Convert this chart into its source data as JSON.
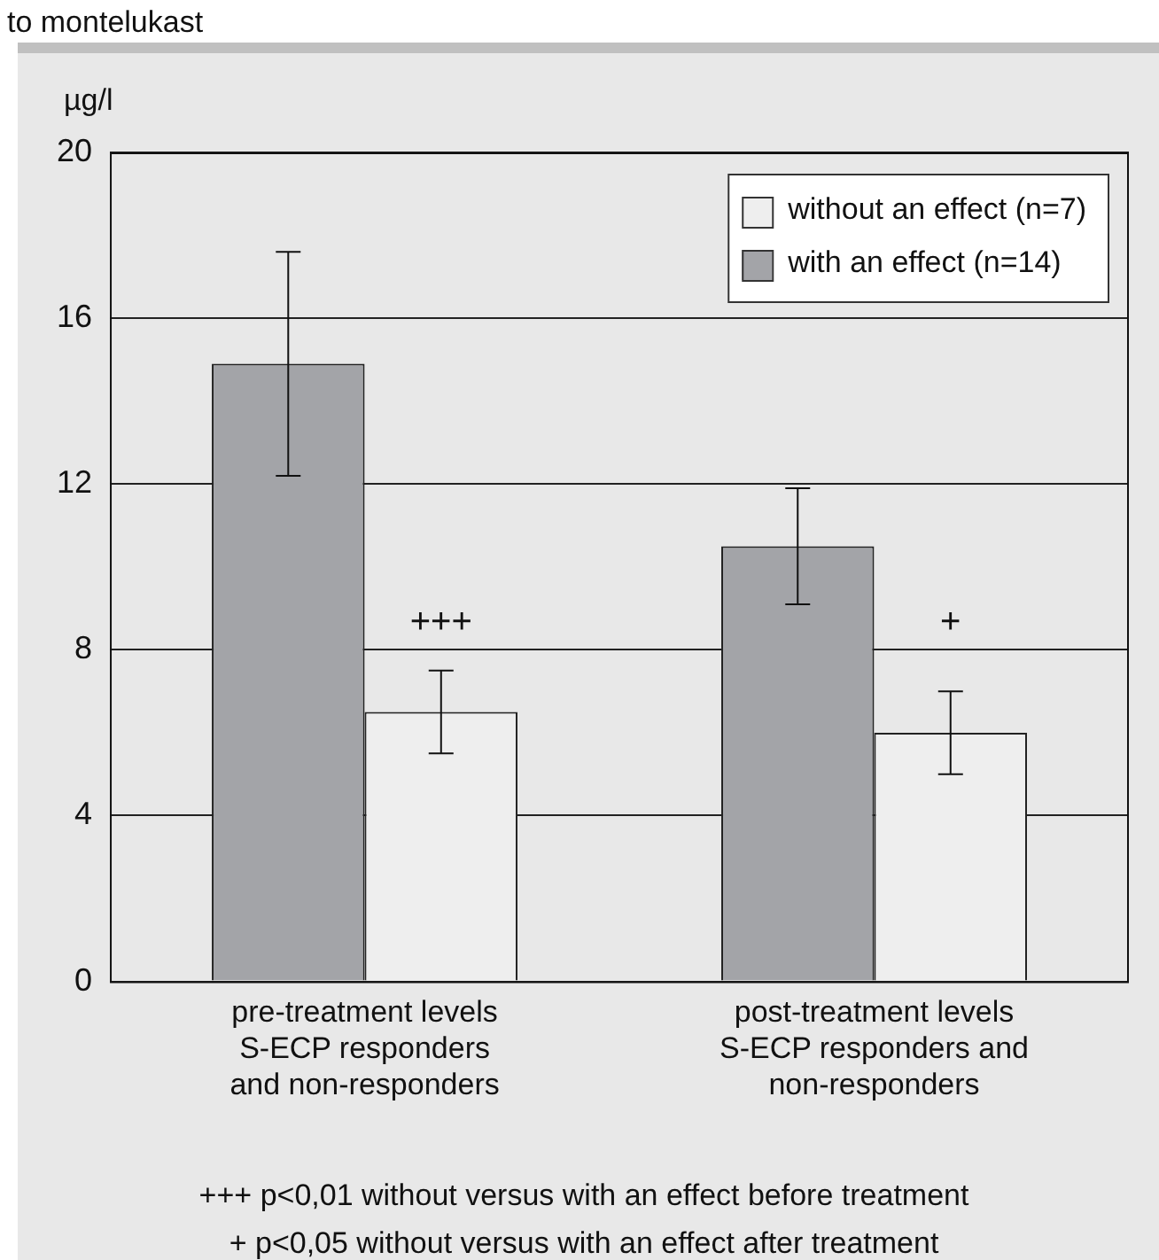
{
  "chart_data": {
    "type": "bar",
    "title": "to montelukast",
    "ylabel": "µg/l",
    "categories": [
      "pre-treatment levels\nS-ECP responders\nand non-responders",
      "post-treatment levels\nS-ECP responders and\nnon-responders"
    ],
    "series": [
      {
        "name": "with an effect (n=14)",
        "color": "#a3a4a8",
        "values": [
          14.9,
          10.5
        ],
        "errors": [
          2.7,
          1.4
        ]
      },
      {
        "name": "without an effect (n=7)",
        "color": "#eeeeee",
        "values": [
          6.5,
          6.0
        ],
        "errors": [
          1.0,
          1.0
        ]
      }
    ],
    "ylim": [
      0,
      20
    ],
    "yticks": [
      0,
      4,
      8,
      12,
      16,
      20
    ],
    "grid": "y",
    "legend": "top right",
    "annotations": [
      {
        "text": "+++",
        "x": "pre-treatment levels\nS-ECP responders\nand non-responders",
        "y": 8.4
      },
      {
        "text": "+",
        "x": "post-treatment levels\nS-ECP responders and\nnon-responders",
        "y": 8.4
      },
      "+++ p<0,01 without versus with an effect before treatment",
      "+ p<0,05 without versus with an effect after treatment"
    ]
  }
}
